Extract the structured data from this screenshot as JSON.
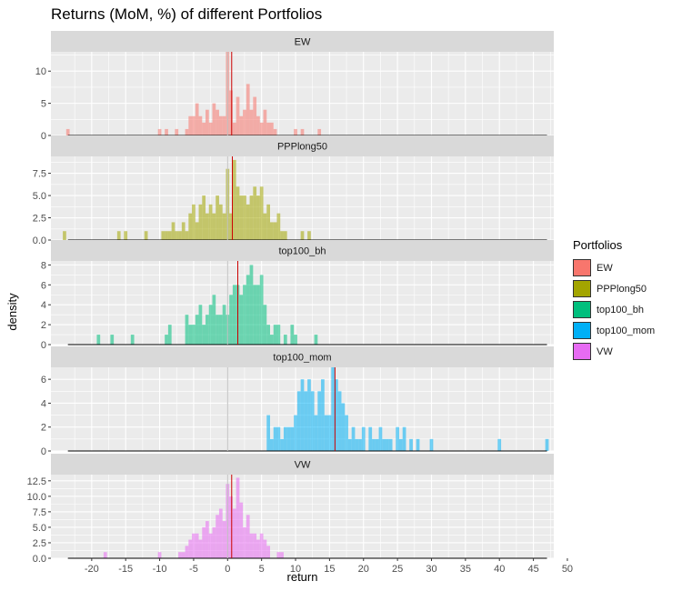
{
  "chart_data": {
    "type": "histogram",
    "title": "Returns (MoM, %) of different Portfolios",
    "xlabel": "return",
    "ylabel": "density",
    "xlim": [
      -26,
      48
    ],
    "xticks": [
      -20,
      -15,
      -10,
      -5,
      0,
      5,
      10,
      15,
      20,
      25,
      30,
      35,
      40,
      45,
      50
    ],
    "grid": true,
    "legend_title": "Portfolios",
    "legend_position": "right",
    "facet_layout": "stacked-rows",
    "density_curve_color": "#000000",
    "mean_line_color": "#cc0000",
    "zero_line_color": "#bfbfbf",
    "panels": [
      {
        "name": "EW",
        "color": "#F8766D",
        "ylim": [
          0,
          13
        ],
        "yticks": [
          0,
          5,
          10
        ],
        "ytick_labels": [
          "0",
          "5",
          "10"
        ],
        "mean": 0.6,
        "bins": [
          [
            -23.5,
            1
          ],
          [
            -10,
            1
          ],
          [
            -9,
            1
          ],
          [
            -7.5,
            1
          ],
          [
            -6,
            1
          ],
          [
            -5.5,
            3
          ],
          [
            -5,
            3
          ],
          [
            -4.5,
            5
          ],
          [
            -4,
            3
          ],
          [
            -3.5,
            2
          ],
          [
            -3,
            4
          ],
          [
            -2.5,
            2
          ],
          [
            -2,
            5
          ],
          [
            -1.5,
            4
          ],
          [
            -1,
            3
          ],
          [
            -0.5,
            3
          ],
          [
            0,
            13
          ],
          [
            0.5,
            7
          ],
          [
            1,
            2
          ],
          [
            1.5,
            6
          ],
          [
            2,
            3
          ],
          [
            2.5,
            4
          ],
          [
            3,
            8
          ],
          [
            3.5,
            4
          ],
          [
            4,
            6
          ],
          [
            4.5,
            3
          ],
          [
            5,
            2
          ],
          [
            5.5,
            4
          ],
          [
            6,
            2
          ],
          [
            6.5,
            2
          ],
          [
            7,
            1
          ],
          [
            10,
            1
          ],
          [
            11,
            1
          ],
          [
            13.5,
            1
          ]
        ]
      },
      {
        "name": "PPPlong50",
        "color": "#A3A500",
        "ylim": [
          0,
          9.4
        ],
        "yticks": [
          0,
          2.5,
          5,
          7.5
        ],
        "ytick_labels": [
          "0.0",
          "2.5",
          "5.0",
          "7.5"
        ],
        "mean": 0.7,
        "bins": [
          [
            -24,
            1
          ],
          [
            -16,
            1
          ],
          [
            -15,
            1
          ],
          [
            -12,
            1
          ],
          [
            -9.5,
            1
          ],
          [
            -9,
            1
          ],
          [
            -8.5,
            1
          ],
          [
            -8,
            2
          ],
          [
            -7.5,
            1
          ],
          [
            -7,
            1
          ],
          [
            -6.5,
            2
          ],
          [
            -6,
            1
          ],
          [
            -5.5,
            3
          ],
          [
            -5,
            4
          ],
          [
            -4.5,
            2
          ],
          [
            -4,
            4
          ],
          [
            -3.5,
            5
          ],
          [
            -3,
            3
          ],
          [
            -2.5,
            4
          ],
          [
            -2,
            3
          ],
          [
            -1.5,
            5
          ],
          [
            -1,
            4
          ],
          [
            -0.5,
            3
          ],
          [
            0,
            8
          ],
          [
            0.5,
            3
          ],
          [
            1,
            9
          ],
          [
            1.5,
            6
          ],
          [
            2,
            5
          ],
          [
            2.5,
            5
          ],
          [
            3,
            4
          ],
          [
            3.5,
            5
          ],
          [
            4,
            6
          ],
          [
            4.5,
            5
          ],
          [
            5,
            6
          ],
          [
            5.5,
            3
          ],
          [
            6,
            4
          ],
          [
            6.5,
            2
          ],
          [
            7,
            2
          ],
          [
            7.5,
            3
          ],
          [
            8,
            1
          ],
          [
            8.5,
            1
          ],
          [
            11,
            1
          ],
          [
            12,
            1
          ]
        ]
      },
      {
        "name": "top100_bh",
        "color": "#00BF7D",
        "ylim": [
          0,
          8.4
        ],
        "yticks": [
          0,
          2,
          4,
          6,
          8
        ],
        "ytick_labels": [
          "0",
          "2",
          "4",
          "6",
          "8"
        ],
        "mean": 1.5,
        "bins": [
          [
            -19,
            1
          ],
          [
            -17,
            1
          ],
          [
            -14,
            1
          ],
          [
            -9,
            1
          ],
          [
            -8.5,
            2
          ],
          [
            -6,
            3
          ],
          [
            -5.5,
            2
          ],
          [
            -5,
            2
          ],
          [
            -4.5,
            3
          ],
          [
            -4,
            4
          ],
          [
            -3.5,
            2
          ],
          [
            -3,
            3
          ],
          [
            -2.5,
            4
          ],
          [
            -2,
            5
          ],
          [
            -1.5,
            3
          ],
          [
            -1,
            3
          ],
          [
            -0.5,
            4
          ],
          [
            0,
            3
          ],
          [
            0.5,
            5
          ],
          [
            1,
            6
          ],
          [
            1.5,
            6
          ],
          [
            2,
            5
          ],
          [
            2.5,
            6
          ],
          [
            3,
            7
          ],
          [
            3.5,
            8
          ],
          [
            4,
            6
          ],
          [
            4.5,
            6
          ],
          [
            5,
            7
          ],
          [
            5.5,
            4
          ],
          [
            6,
            2
          ],
          [
            6.5,
            1
          ],
          [
            7,
            2
          ],
          [
            7.5,
            2
          ],
          [
            8.5,
            1
          ],
          [
            9.5,
            2
          ],
          [
            10,
            1
          ],
          [
            13,
            1
          ]
        ]
      },
      {
        "name": "top100_mom",
        "color": "#00B0F6",
        "ylim": [
          0,
          7.0
        ],
        "yticks": [
          0,
          2,
          4,
          6
        ],
        "ytick_labels": [
          "0",
          "2",
          "4",
          "6"
        ],
        "mean": 15.8,
        "bins": [
          [
            6,
            3
          ],
          [
            6.5,
            1
          ],
          [
            7,
            2
          ],
          [
            7.5,
            2
          ],
          [
            8,
            1
          ],
          [
            8.5,
            2
          ],
          [
            9,
            2
          ],
          [
            9.5,
            2
          ],
          [
            10,
            3
          ],
          [
            10.5,
            5
          ],
          [
            11,
            6
          ],
          [
            11.5,
            5
          ],
          [
            12,
            6
          ],
          [
            12.5,
            5
          ],
          [
            13,
            3
          ],
          [
            13.5,
            5
          ],
          [
            14,
            6
          ],
          [
            14.5,
            3
          ],
          [
            15,
            3
          ],
          [
            15.5,
            7
          ],
          [
            16,
            6
          ],
          [
            16.5,
            5
          ],
          [
            17,
            4
          ],
          [
            17.5,
            3
          ],
          [
            18,
            1
          ],
          [
            18.5,
            2
          ],
          [
            19,
            1
          ],
          [
            19.5,
            1
          ],
          [
            20,
            2
          ],
          [
            21,
            2
          ],
          [
            21.5,
            1
          ],
          [
            22,
            1
          ],
          [
            22.5,
            2
          ],
          [
            23,
            1
          ],
          [
            23.5,
            1
          ],
          [
            24,
            1
          ],
          [
            25,
            2
          ],
          [
            25.5,
            1
          ],
          [
            26,
            2
          ],
          [
            27,
            1
          ],
          [
            28,
            1
          ],
          [
            30,
            1
          ],
          [
            40,
            1
          ],
          [
            47,
            1
          ]
        ]
      },
      {
        "name": "VW",
        "color": "#E76BF3",
        "ylim": [
          0,
          13.5
        ],
        "yticks": [
          0,
          2.5,
          5,
          7.5,
          10,
          12.5
        ],
        "ytick_labels": [
          "0.0",
          "2.5",
          "5.0",
          "7.5",
          "10.0",
          "12.5"
        ],
        "mean": 0.6,
        "bins": [
          [
            -18,
            1
          ],
          [
            -10,
            1
          ],
          [
            -7,
            1
          ],
          [
            -6.5,
            1
          ],
          [
            -6,
            2
          ],
          [
            -5.5,
            3
          ],
          [
            -5,
            4
          ],
          [
            -4.5,
            4
          ],
          [
            -4,
            3
          ],
          [
            -3.5,
            5
          ],
          [
            -3,
            6
          ],
          [
            -2.5,
            4
          ],
          [
            -2,
            5
          ],
          [
            -1.5,
            7
          ],
          [
            -1,
            8
          ],
          [
            -0.5,
            6
          ],
          [
            0,
            12
          ],
          [
            0.5,
            10
          ],
          [
            1,
            8
          ],
          [
            1.5,
            13
          ],
          [
            2,
            9
          ],
          [
            2.5,
            5
          ],
          [
            3,
            7
          ],
          [
            3.5,
            4
          ],
          [
            4,
            4
          ],
          [
            4.5,
            3
          ],
          [
            5,
            4
          ],
          [
            5.5,
            3
          ],
          [
            6,
            2
          ],
          [
            7.5,
            1
          ],
          [
            8,
            1
          ]
        ]
      }
    ]
  }
}
